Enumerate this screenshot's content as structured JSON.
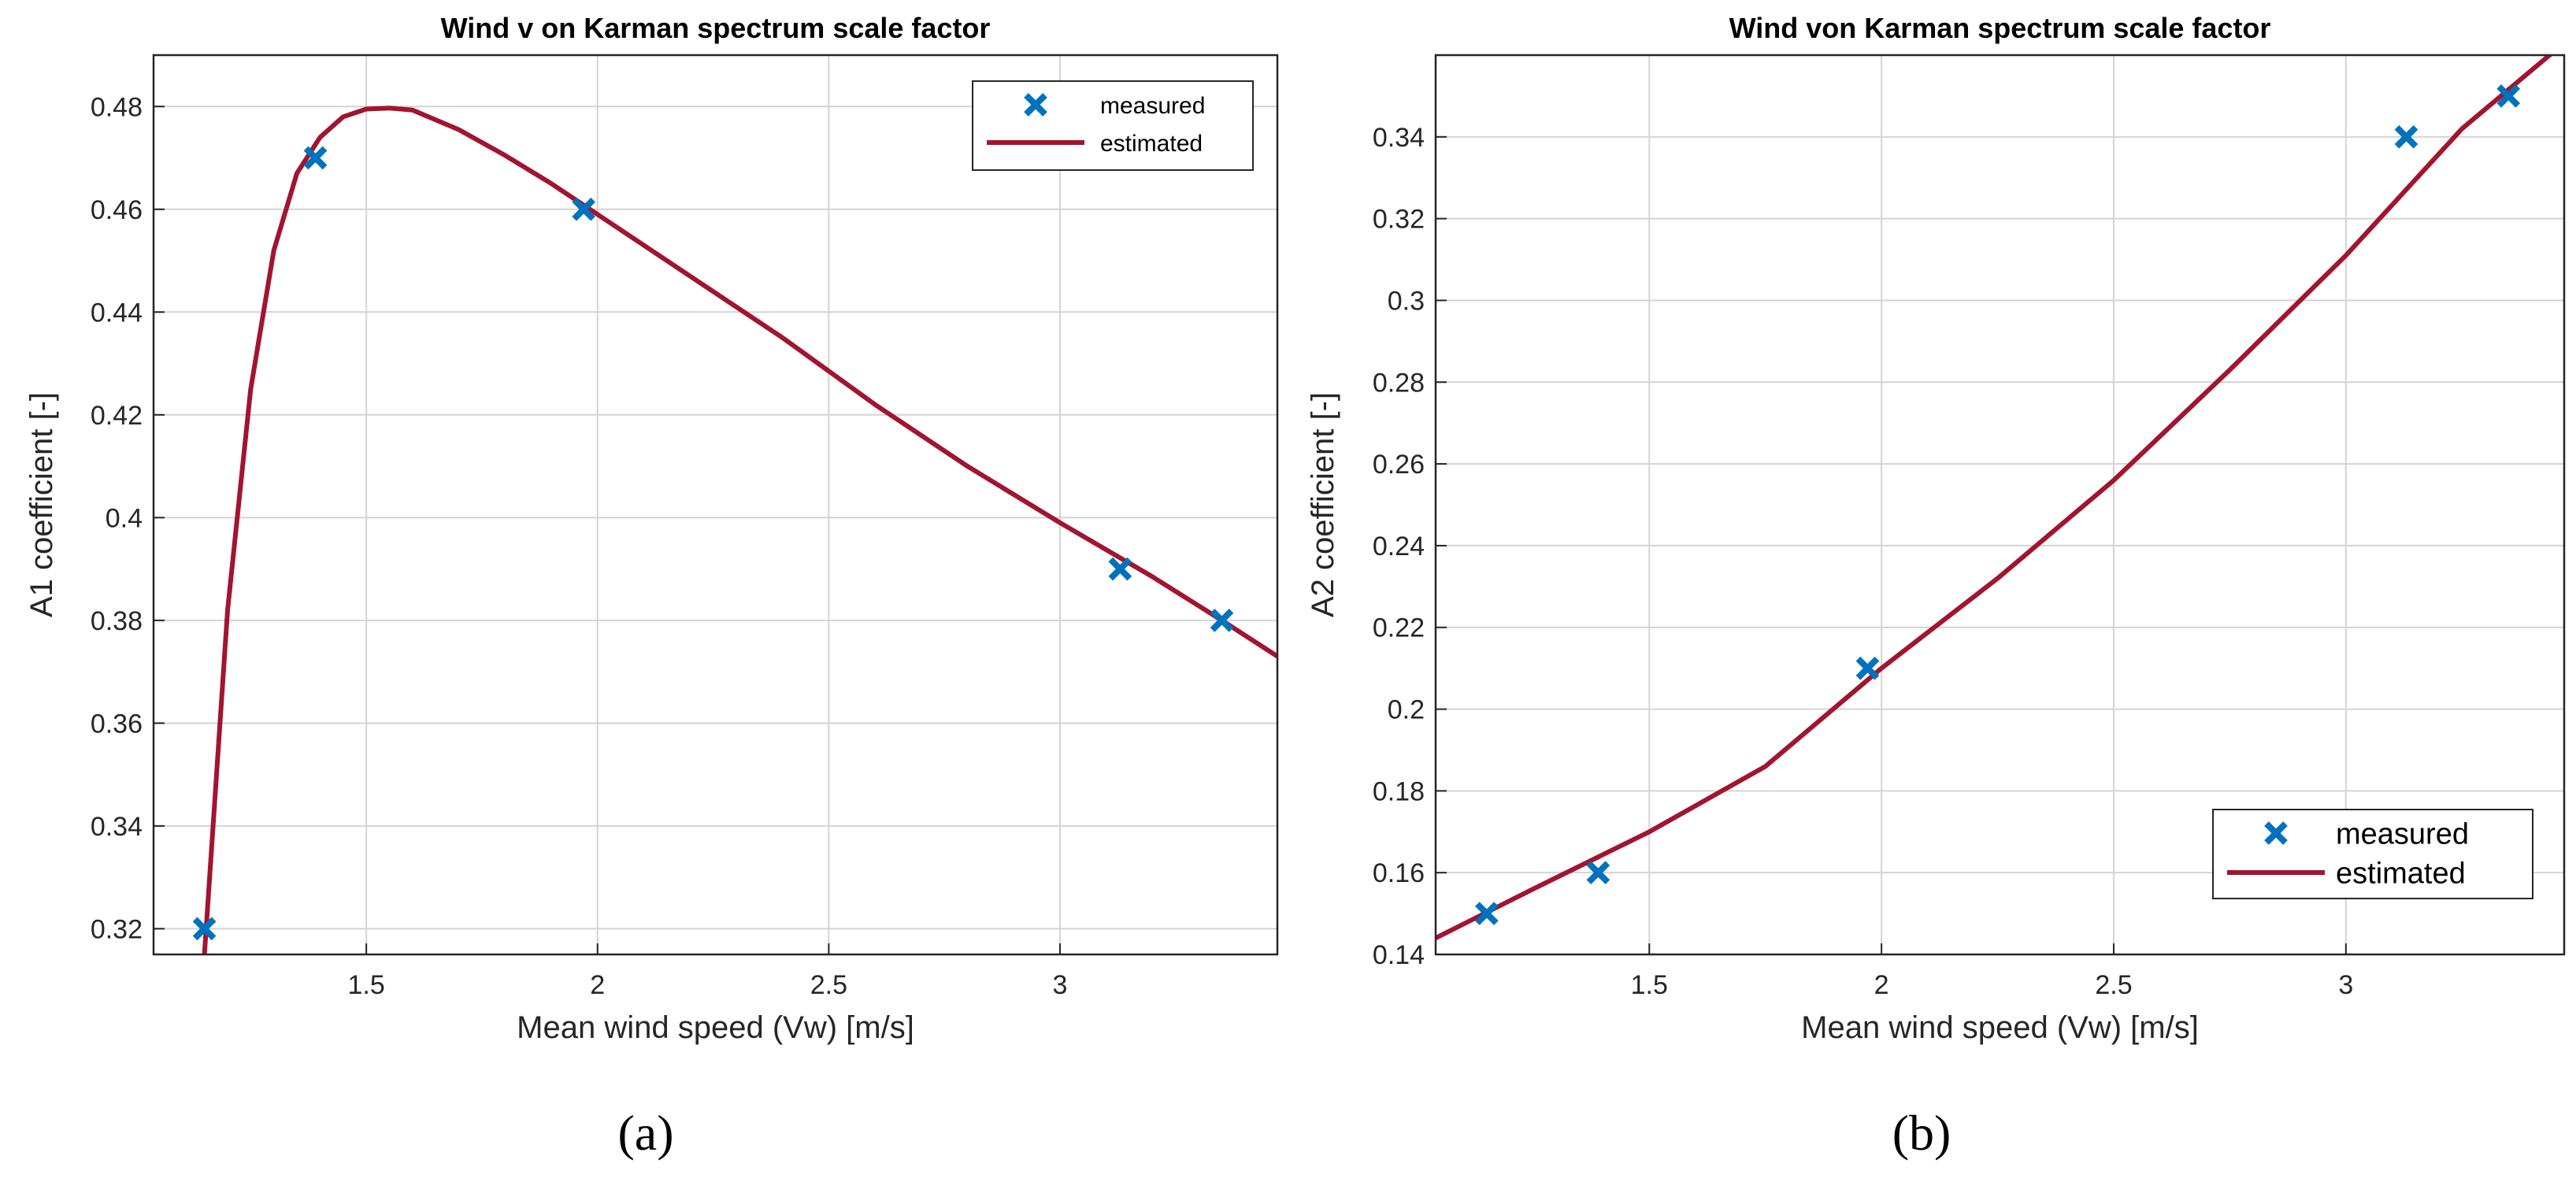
{
  "colors": {
    "measured": "#0072BD",
    "estimated": "#A2142F",
    "grid": "#d4d4d4",
    "axis": "#262626"
  },
  "chart_data": [
    {
      "type": "scatter",
      "title": "Wind v on Karman spectrum scale factor",
      "xlabel": "Mean wind speed (Vw) [m/s]",
      "ylabel": "A1 coefficient [-]",
      "caption": "(a)",
      "xlim": [
        1.04,
        3.47
      ],
      "ylim": [
        0.315,
        0.49
      ],
      "xticks": [
        1.5,
        2,
        2.5,
        3
      ],
      "xtick_labels": [
        "1.5",
        "2",
        "2.5",
        "3"
      ],
      "yticks": [
        0.32,
        0.34,
        0.36,
        0.38,
        0.4,
        0.42,
        0.44,
        0.46,
        0.48
      ],
      "ytick_labels": [
        "0.32",
        "0.34",
        "0.36",
        "0.38",
        "0.4",
        "0.42",
        "0.44",
        "0.46",
        "0.48"
      ],
      "grid": true,
      "legend_position": "top-right",
      "series": [
        {
          "name": "measured",
          "kind": "marker",
          "marker": "x",
          "x": [
            1.15,
            1.39,
            1.97,
            3.13,
            3.35
          ],
          "y": [
            0.32,
            0.47,
            0.46,
            0.39,
            0.38
          ]
        },
        {
          "name": "estimated",
          "kind": "line",
          "x": [
            1.15,
            1.2,
            1.25,
            1.3,
            1.35,
            1.4,
            1.45,
            1.5,
            1.55,
            1.6,
            1.7,
            1.8,
            1.9,
            2.0,
            2.2,
            2.4,
            2.6,
            2.8,
            3.0,
            3.2,
            3.35,
            3.47
          ],
          "y": [
            0.315,
            0.382,
            0.425,
            0.452,
            0.467,
            0.474,
            0.478,
            0.4795,
            0.4797,
            0.4793,
            0.4755,
            0.4705,
            0.465,
            0.459,
            0.447,
            0.435,
            0.422,
            0.41,
            0.399,
            0.3885,
            0.38,
            0.373
          ]
        }
      ]
    },
    {
      "type": "scatter",
      "title": "Wind von Karman spectrum scale factor",
      "xlabel": "Mean wind speed (Vw) [m/s]",
      "ylabel": "A2 coefficient [-]",
      "caption": "(b)",
      "xlim": [
        1.04,
        3.47
      ],
      "ylim": [
        0.14,
        0.36
      ],
      "xticks": [
        1.5,
        2,
        2.5,
        3
      ],
      "xtick_labels": [
        "1.5",
        "2",
        "2.5",
        "3"
      ],
      "yticks": [
        0.14,
        0.16,
        0.18,
        0.2,
        0.22,
        0.24,
        0.26,
        0.28,
        0.3,
        0.32,
        0.34
      ],
      "ytick_labels": [
        "0.14",
        "0.16",
        "0.18",
        "0.2",
        "0.22",
        "0.24",
        "0.26",
        "0.28",
        "0.3",
        "0.32",
        "0.34"
      ],
      "grid": true,
      "legend_position": "bottom-right",
      "series": [
        {
          "name": "measured",
          "kind": "marker",
          "marker": "x",
          "x": [
            1.15,
            1.39,
            1.97,
            3.13,
            3.35
          ],
          "y": [
            0.15,
            0.16,
            0.21,
            0.34,
            0.35
          ]
        },
        {
          "name": "estimated",
          "kind": "line",
          "x": [
            1.04,
            1.25,
            1.5,
            1.75,
            2.0,
            2.25,
            2.5,
            2.75,
            3.0,
            3.25,
            3.47
          ],
          "y": [
            0.144,
            0.156,
            0.17,
            0.186,
            0.21,
            0.232,
            0.256,
            0.283,
            0.311,
            0.342,
            0.363
          ]
        }
      ]
    }
  ]
}
